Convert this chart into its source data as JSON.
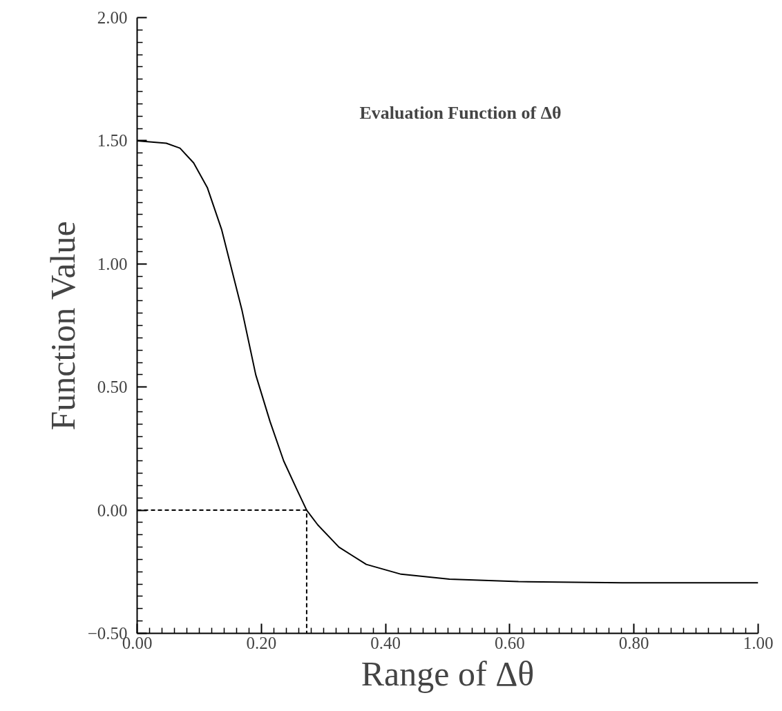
{
  "chart_data": {
    "type": "line",
    "xlabel": "Range of Δθ",
    "ylabel": "Function Value",
    "annotations": [
      "Evaluation Function of Δθ"
    ],
    "xlim": [
      0,
      1
    ],
    "ylim": [
      -0.5,
      2
    ],
    "xticks": [
      {
        "value": 0,
        "label": "0.00"
      },
      {
        "value": 0.2,
        "label": "0.20"
      },
      {
        "value": 0.4,
        "label": "0.40"
      },
      {
        "value": 0.6,
        "label": "0.60"
      },
      {
        "value": 0.8,
        "label": "0.80"
      },
      {
        "value": 1,
        "label": "1.00"
      }
    ],
    "yticks": [
      {
        "value": -0.5,
        "label": "−0.50"
      },
      {
        "value": 0,
        "label": "0.00"
      },
      {
        "value": 0.5,
        "label": "0.50"
      },
      {
        "value": 1,
        "label": "1.00"
      },
      {
        "value": 1.5,
        "label": "1.50"
      },
      {
        "value": 2,
        "label": "2.00"
      }
    ],
    "grid": false,
    "series": [
      {
        "color": "#000000",
        "line_style": "solid",
        "x": [
          0,
          0.047,
          0.069,
          0.091,
          0.113,
          0.136,
          0.158,
          0.169,
          0.191,
          0.214,
          0.236,
          0.258,
          0.273,
          0.291,
          0.325,
          0.369,
          0.425,
          0.503,
          0.614,
          0.781,
          1.0
        ],
        "values": [
          1.5,
          1.49,
          1.47,
          1.41,
          1.31,
          1.14,
          0.92,
          0.81,
          0.55,
          0.36,
          0.2,
          0.08,
          0.0,
          -0.06,
          -0.15,
          -0.22,
          -0.26,
          -0.28,
          -0.29,
          -0.295,
          -0.295
        ]
      },
      {
        "color": "#000000",
        "line_style": "dashed",
        "x": [
          0,
          0.273,
          0.273
        ],
        "values": [
          0,
          0,
          -0.5
        ]
      }
    ]
  }
}
